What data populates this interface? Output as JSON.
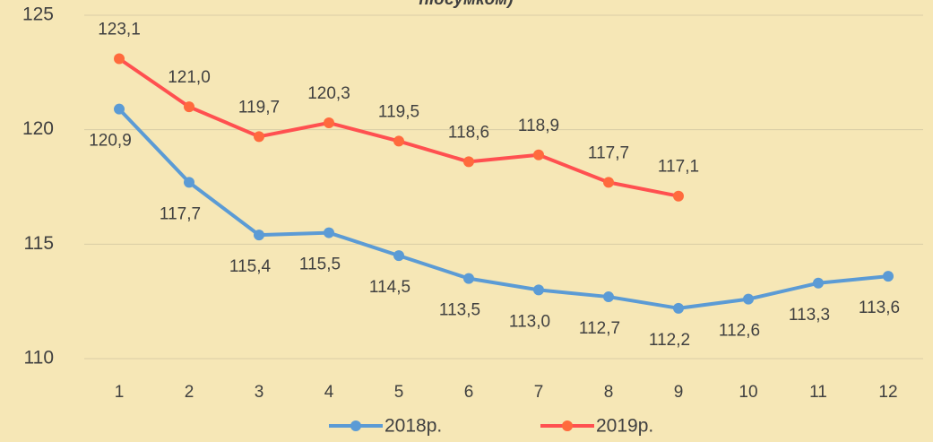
{
  "chart_data": {
    "type": "line",
    "title": "підсумком)",
    "categories": [
      "1",
      "2",
      "3",
      "4",
      "5",
      "6",
      "7",
      "8",
      "9",
      "10",
      "11",
      "12"
    ],
    "series": [
      {
        "name": "2018р.",
        "color": "#5b9bd5",
        "values": [
          120.9,
          117.7,
          115.4,
          115.5,
          114.5,
          113.5,
          113.0,
          112.7,
          112.2,
          112.6,
          113.3,
          113.6
        ],
        "value_labels": [
          "120,9",
          "117,7",
          "115,4",
          "115,5",
          "114,5",
          "113,5",
          "113,0",
          "112,7",
          "112,2",
          "112,6",
          "113,3",
          "113,6"
        ]
      },
      {
        "name": "2019р.",
        "color": "#ff5050",
        "values": [
          123.1,
          121.0,
          119.7,
          120.3,
          119.5,
          118.6,
          118.9,
          117.7,
          117.1,
          null,
          null,
          null
        ],
        "value_labels": [
          "123,1",
          "121,0",
          "119,7",
          "120,3",
          "119,5",
          "118,6",
          "118,9",
          "117,7",
          "117,1",
          null,
          null,
          null
        ]
      }
    ],
    "ylim": [
      110,
      125
    ],
    "yticks": [
      110,
      115,
      120,
      125
    ],
    "grid": true,
    "legend": "bottom"
  }
}
